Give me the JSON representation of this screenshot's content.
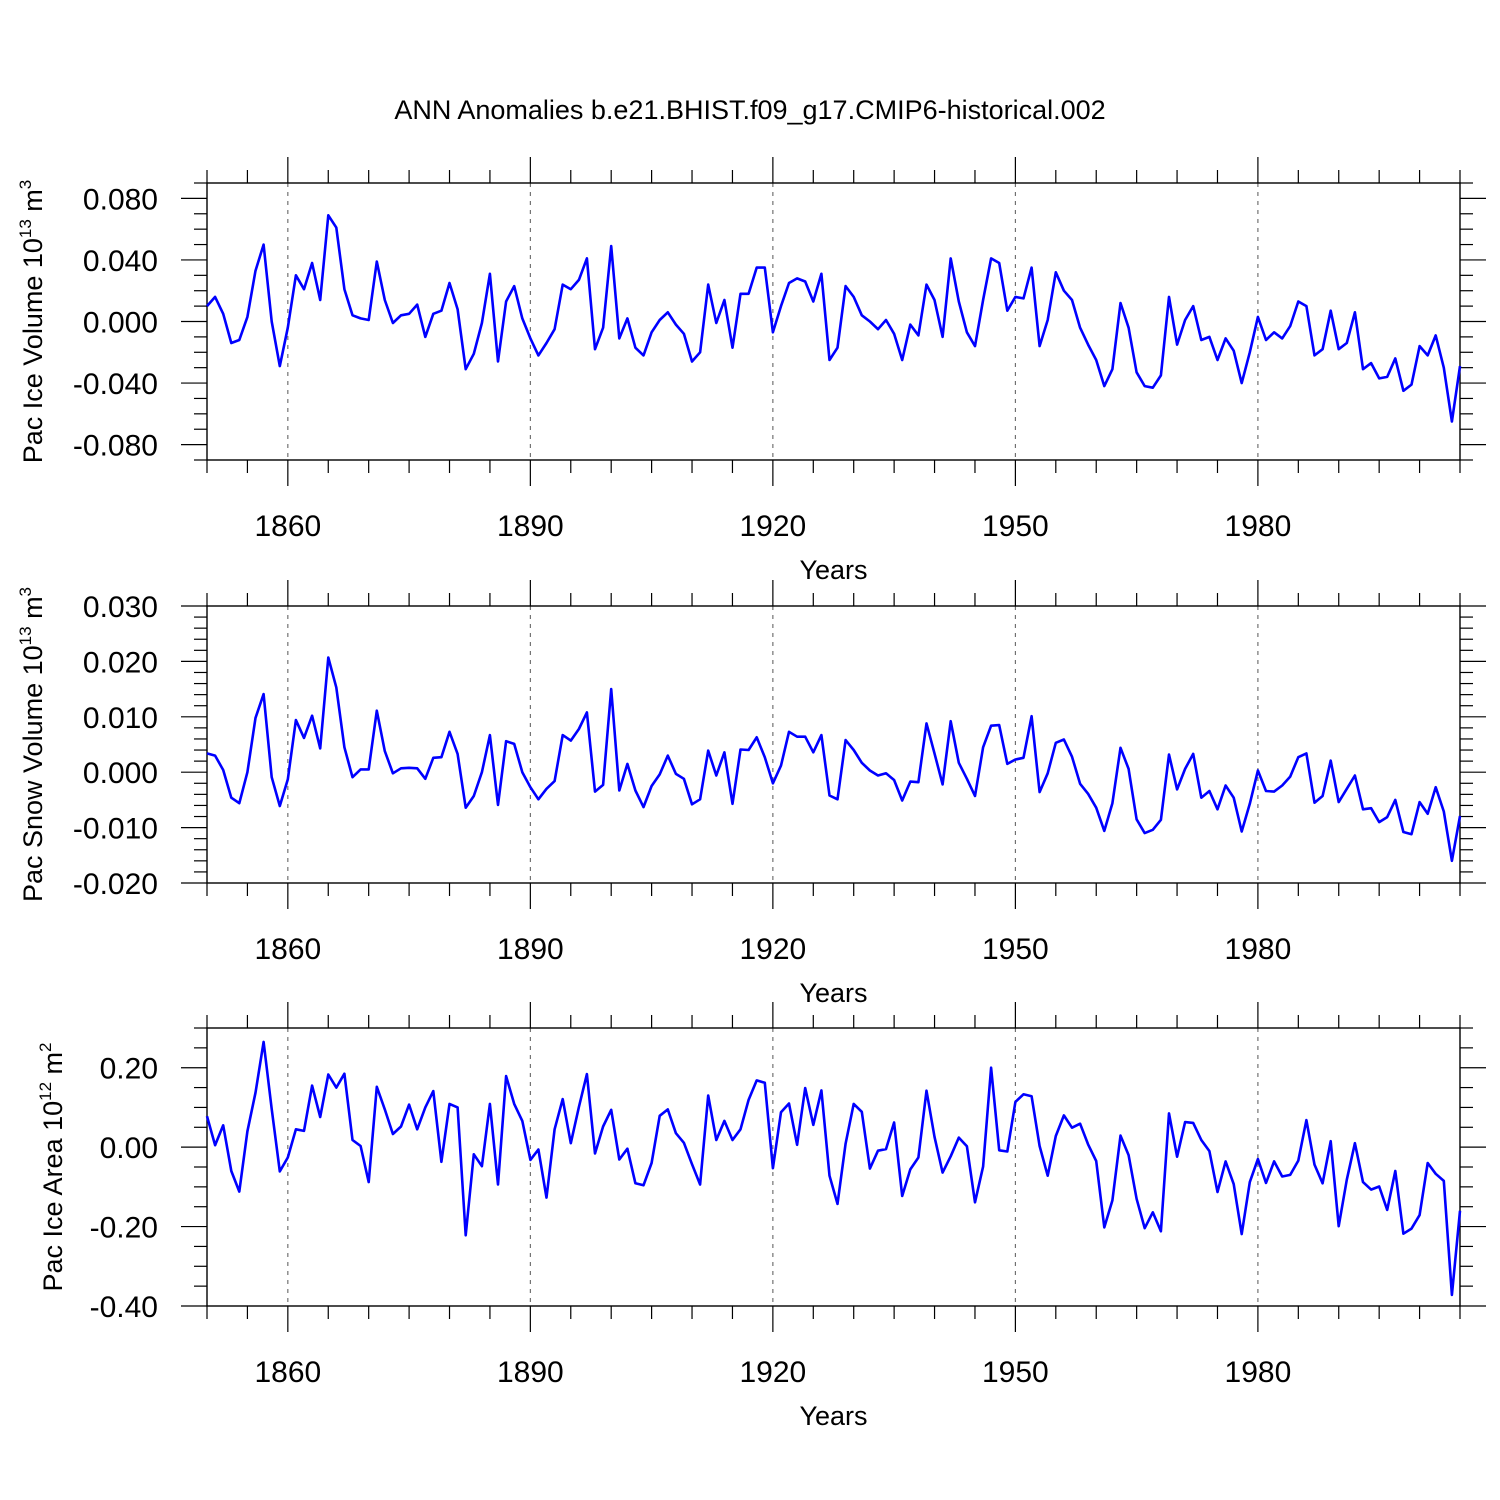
{
  "chart_data": {
    "type": "line",
    "title": "ANN Anomalies b.e21.BHIST.f09_g17.CMIP6-historical.002",
    "x": {
      "start": 1850,
      "end": 2005,
      "xlim": [
        1850,
        2005
      ],
      "xticks": [
        1860,
        1890,
        1920,
        1950,
        1980
      ],
      "xtick_labels": [
        "1860",
        "1890",
        "1920",
        "1950",
        "1980"
      ],
      "xlabel": "Years",
      "grid": "vertical dashed at major ticks"
    },
    "color": "#0000ff",
    "panels": [
      {
        "ylabel": "Pac Ice Volume 10",
        "ylabel_exp": "13",
        "ylabel_unit": " m",
        "ylabel_unit_exp": "3",
        "ylim": [
          -0.09,
          0.09
        ],
        "yticks": [
          -0.08,
          -0.04,
          0.0,
          0.04,
          0.08
        ],
        "ytick_labels": [
          "-0.080",
          "-0.040",
          "0.000",
          "0.040",
          "0.080"
        ],
        "yminor_step": 0.01,
        "values": [
          0.01,
          0.016,
          0.005,
          -0.014,
          -0.012,
          0.003,
          0.033,
          0.05,
          0.0,
          -0.029,
          -0.004,
          0.03,
          0.021,
          0.038,
          0.014,
          0.069,
          0.061,
          0.021,
          0.004,
          0.002,
          0.001,
          0.039,
          0.014,
          -0.001,
          0.004,
          0.005,
          0.011,
          -0.01,
          0.005,
          0.007,
          0.025,
          0.008,
          -0.031,
          -0.021,
          -0.001,
          0.031,
          -0.026,
          0.013,
          0.023,
          0.002,
          -0.011,
          -0.022,
          -0.014,
          -0.005,
          0.024,
          0.021,
          0.027,
          0.041,
          -0.018,
          -0.004,
          0.049,
          -0.011,
          0.002,
          -0.017,
          -0.022,
          -0.007,
          0.001,
          0.006,
          -0.002,
          -0.008,
          -0.026,
          -0.02,
          0.024,
          -0.001,
          0.014,
          -0.017,
          0.018,
          0.018,
          0.035,
          0.035,
          -0.007,
          0.01,
          0.025,
          0.028,
          0.026,
          0.013,
          0.031,
          -0.025,
          -0.017,
          0.023,
          0.016,
          0.004,
          0.0,
          -0.005,
          0.001,
          -0.008,
          -0.025,
          -0.002,
          -0.009,
          0.024,
          0.014,
          -0.01,
          0.041,
          0.013,
          -0.007,
          -0.016,
          0.014,
          0.041,
          0.038,
          0.007,
          0.016,
          0.015,
          0.035,
          -0.016,
          0.001,
          0.032,
          0.02,
          0.014,
          -0.004,
          -0.015,
          -0.025,
          -0.042,
          -0.031,
          0.012,
          -0.004,
          -0.033,
          -0.042,
          -0.043,
          -0.035,
          0.016,
          -0.015,
          0.001,
          0.01,
          -0.012,
          -0.01,
          -0.025,
          -0.011,
          -0.019,
          -0.04,
          -0.02,
          0.003,
          -0.012,
          -0.007,
          -0.011,
          -0.003,
          0.013,
          0.01,
          -0.022,
          -0.018,
          0.007,
          -0.018,
          -0.014,
          0.006,
          -0.031,
          -0.027,
          -0.037,
          -0.036,
          -0.024,
          -0.045,
          -0.041,
          -0.016,
          -0.022,
          -0.009,
          -0.03,
          -0.065,
          -0.029
        ]
      },
      {
        "ylabel": "Pac Snow Volume 10",
        "ylabel_exp": "13",
        "ylabel_unit": " m",
        "ylabel_unit_exp": "3",
        "ylim": [
          -0.02,
          0.03
        ],
        "yticks": [
          -0.02,
          -0.01,
          0.0,
          0.01,
          0.02,
          0.03
        ],
        "ytick_labels": [
          "-0.020",
          "-0.010",
          "0.000",
          "0.010",
          "0.020",
          "0.030"
        ],
        "yminor_step": 0.002,
        "values": [
          0.0034,
          0.003,
          0.0004,
          -0.0046,
          -0.0056,
          0.0,
          0.0098,
          0.0141,
          -0.0009,
          -0.0061,
          -0.0013,
          0.0094,
          0.0062,
          0.0102,
          0.0043,
          0.0207,
          0.0153,
          0.0045,
          -0.0009,
          0.0005,
          0.0005,
          0.0111,
          0.0038,
          -0.0002,
          0.0007,
          0.0008,
          0.0007,
          -0.0012,
          0.0026,
          0.0027,
          0.0073,
          0.0033,
          -0.0064,
          -0.0043,
          0.0,
          0.0067,
          -0.0059,
          0.0056,
          0.0051,
          0.0,
          -0.0027,
          -0.0049,
          -0.003,
          -0.0016,
          0.0067,
          0.0057,
          0.0078,
          0.0108,
          -0.0035,
          -0.0023,
          0.015,
          -0.0033,
          0.0015,
          -0.0033,
          -0.0063,
          -0.0025,
          -0.0004,
          0.003,
          -0.0003,
          -0.0012,
          -0.0058,
          -0.0049,
          0.0039,
          -0.0006,
          0.0036,
          -0.0057,
          0.0041,
          0.004,
          0.0063,
          0.0027,
          -0.002,
          0.0012,
          0.0073,
          0.0064,
          0.0064,
          0.0036,
          0.0067,
          -0.0042,
          -0.0049,
          0.0058,
          0.004,
          0.0017,
          0.0003,
          -0.0006,
          -0.0002,
          -0.0014,
          -0.0051,
          -0.0017,
          -0.0018,
          0.0088,
          0.0034,
          -0.0022,
          0.0092,
          0.0017,
          -0.0012,
          -0.0043,
          0.0045,
          0.0084,
          0.0085,
          0.0015,
          0.0023,
          0.0026,
          0.0101,
          -0.0036,
          -0.0002,
          0.0053,
          0.0059,
          0.0028,
          -0.0021,
          -0.0039,
          -0.0064,
          -0.0106,
          -0.0056,
          0.0044,
          0.0006,
          -0.0085,
          -0.011,
          -0.0104,
          -0.0086,
          0.0032,
          -0.0031,
          0.0006,
          0.0033,
          -0.0046,
          -0.0034,
          -0.0067,
          -0.0024,
          -0.0046,
          -0.0107,
          -0.0057,
          0.0003,
          -0.0034,
          -0.0035,
          -0.0024,
          -0.0008,
          0.0027,
          0.0034,
          -0.0055,
          -0.0043,
          0.0021,
          -0.0054,
          -0.003,
          -0.0006,
          -0.0067,
          -0.0065,
          -0.009,
          -0.0081,
          -0.005,
          -0.0108,
          -0.0112,
          -0.0054,
          -0.0075,
          -0.0027,
          -0.0071,
          -0.016,
          -0.0079
        ]
      },
      {
        "ylabel": "Pac Ice Area 10",
        "ylabel_exp": "12",
        "ylabel_unit": " m",
        "ylabel_unit_exp": "2",
        "ylim": [
          -0.4,
          0.3
        ],
        "yticks": [
          -0.4,
          -0.2,
          0.0,
          0.2
        ],
        "ytick_labels": [
          "-0.40",
          "-0.20",
          "0.00",
          "0.20"
        ],
        "yminor_step": 0.05,
        "values": [
          0.078,
          0.005,
          0.055,
          -0.06,
          -0.112,
          0.04,
          0.137,
          0.265,
          0.096,
          -0.061,
          -0.026,
          0.045,
          0.041,
          0.155,
          0.076,
          0.183,
          0.15,
          0.185,
          0.018,
          0.003,
          -0.088,
          0.152,
          0.095,
          0.033,
          0.052,
          0.107,
          0.045,
          0.1,
          0.141,
          -0.037,
          0.109,
          0.1,
          -0.222,
          -0.018,
          -0.048,
          0.109,
          -0.094,
          0.179,
          0.109,
          0.066,
          -0.032,
          -0.006,
          -0.127,
          0.045,
          0.121,
          0.01,
          0.101,
          0.184,
          -0.016,
          0.052,
          0.094,
          -0.031,
          -0.004,
          -0.091,
          -0.096,
          -0.04,
          0.079,
          0.095,
          0.035,
          0.011,
          -0.043,
          -0.094,
          0.13,
          0.018,
          0.066,
          0.018,
          0.045,
          0.119,
          0.168,
          0.162,
          -0.053,
          0.088,
          0.11,
          0.006,
          0.149,
          0.056,
          0.143,
          -0.072,
          -0.143,
          0.009,
          0.109,
          0.089,
          -0.054,
          -0.009,
          -0.005,
          0.062,
          -0.123,
          -0.056,
          -0.026,
          0.142,
          0.026,
          -0.064,
          -0.023,
          0.024,
          0.002,
          -0.139,
          -0.049,
          0.2,
          -0.008,
          -0.011,
          0.114,
          0.133,
          0.128,
          0.003,
          -0.072,
          0.028,
          0.08,
          0.049,
          0.059,
          0.007,
          -0.035,
          -0.202,
          -0.134,
          0.029,
          -0.02,
          -0.13,
          -0.204,
          -0.164,
          -0.212,
          0.085,
          -0.024,
          0.063,
          0.061,
          0.018,
          -0.01,
          -0.113,
          -0.036,
          -0.093,
          -0.219,
          -0.088,
          -0.03,
          -0.09,
          -0.036,
          -0.074,
          -0.07,
          -0.034,
          0.068,
          -0.044,
          -0.091,
          0.015,
          -0.199,
          -0.082,
          0.01,
          -0.088,
          -0.107,
          -0.099,
          -0.158,
          -0.06,
          -0.218,
          -0.205,
          -0.171,
          -0.04,
          -0.067,
          -0.085,
          -0.372,
          -0.16
        ]
      }
    ]
  }
}
